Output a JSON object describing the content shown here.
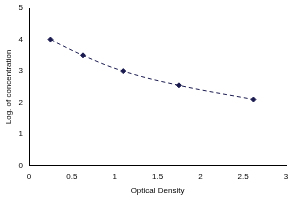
{
  "chart_data": {
    "type": "line",
    "x_label": "Optical Density",
    "y_label": "Log. of concentration",
    "x": [
      0.25,
      0.63,
      1.1,
      1.75,
      2.62
    ],
    "values": [
      4.0,
      3.5,
      3.0,
      2.55,
      2.1
    ],
    "color": "#1a1a4e",
    "marker": "diamond",
    "line_style": "dashed",
    "xlim": [
      0,
      3
    ],
    "xticks": [
      0,
      0.5,
      1,
      1.5,
      2,
      2.5,
      3
    ],
    "ylim": [
      0,
      5
    ],
    "yticks": [
      0,
      1,
      2,
      3,
      4,
      5
    ],
    "grid": false
  }
}
